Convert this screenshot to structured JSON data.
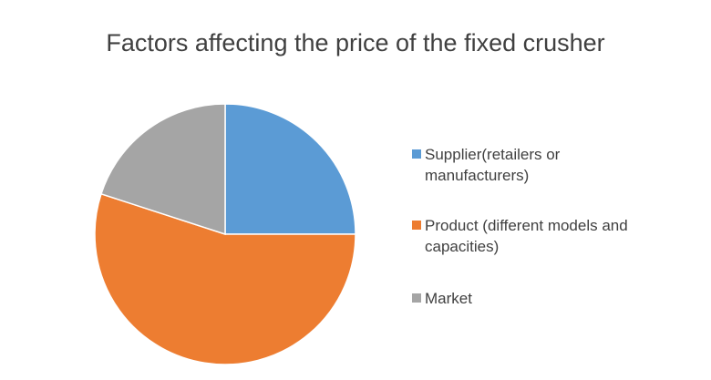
{
  "chart_data": {
    "type": "pie",
    "title": "Factors affecting the price of the fixed crusher",
    "categories": [
      "Supplier(retailers or manufacturers)",
      "Product (different models and capacities)",
      "Market"
    ],
    "values": [
      25,
      55,
      20
    ],
    "colors": [
      "#5b9bd5",
      "#ed7d31",
      "#a5a5a5"
    ],
    "legend": "right"
  }
}
